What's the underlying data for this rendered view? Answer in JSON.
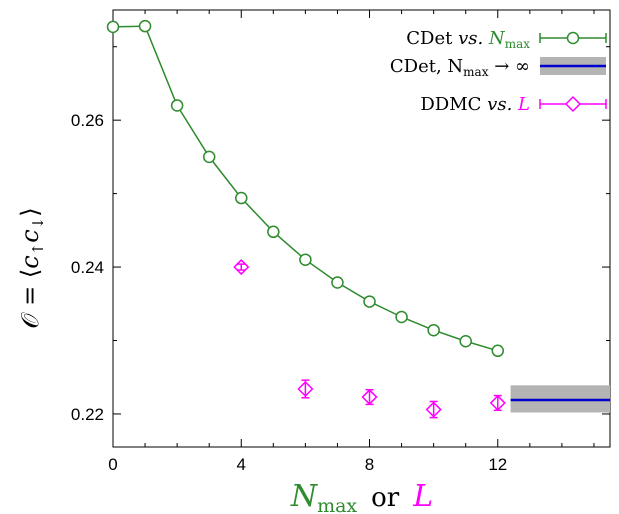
{
  "chart_data": {
    "type": "line",
    "xlabel_parts": [
      "N",
      "max",
      "or",
      "L"
    ],
    "ylabel_parts": [
      "𝒪 = ⟨",
      "c",
      "↑",
      "c",
      "↓",
      "⟩"
    ],
    "xlim": [
      0,
      15.5
    ],
    "ylim": [
      0.2155,
      0.275
    ],
    "xticks": [
      0,
      4,
      8,
      12
    ],
    "yticks": [
      0.22,
      0.24,
      0.26
    ],
    "ytick_labels": [
      "0.22",
      "0.24",
      "0.26"
    ],
    "legend_position": "top-right",
    "colors": {
      "cdet": "#2e8b2e",
      "extrap": "#0000cc",
      "extrap_band": "#b4b4b4",
      "ddmc": "#ff00ff"
    },
    "series": [
      {
        "name_parts": [
          "CDet ",
          "vs.",
          " N",
          "max"
        ],
        "kind": "line-open-circle",
        "x": [
          0,
          1,
          2,
          3,
          4,
          5,
          6,
          7,
          8,
          9,
          10,
          11,
          12
        ],
        "y": [
          0.2727,
          0.2728,
          0.262,
          0.255,
          0.2494,
          0.2448,
          0.241,
          0.2379,
          0.2353,
          0.2332,
          0.2314,
          0.2299,
          0.2286
        ]
      },
      {
        "name_parts": [
          "CDet,  N",
          "max",
          " → ∞"
        ],
        "kind": "band",
        "x_range": [
          12.4,
          15.5
        ],
        "value": 0.2219,
        "band": [
          0.2202,
          0.2239
        ]
      },
      {
        "name_parts": [
          "DDMC ",
          "vs.",
          " L"
        ],
        "kind": "open-diamond-errorbar",
        "x": [
          4,
          6,
          8,
          10,
          12
        ],
        "y": [
          0.24,
          0.2234,
          0.2223,
          0.2206,
          0.2215
        ],
        "err": [
          0.0004,
          0.0012,
          0.001,
          0.0011,
          0.001
        ]
      }
    ]
  }
}
